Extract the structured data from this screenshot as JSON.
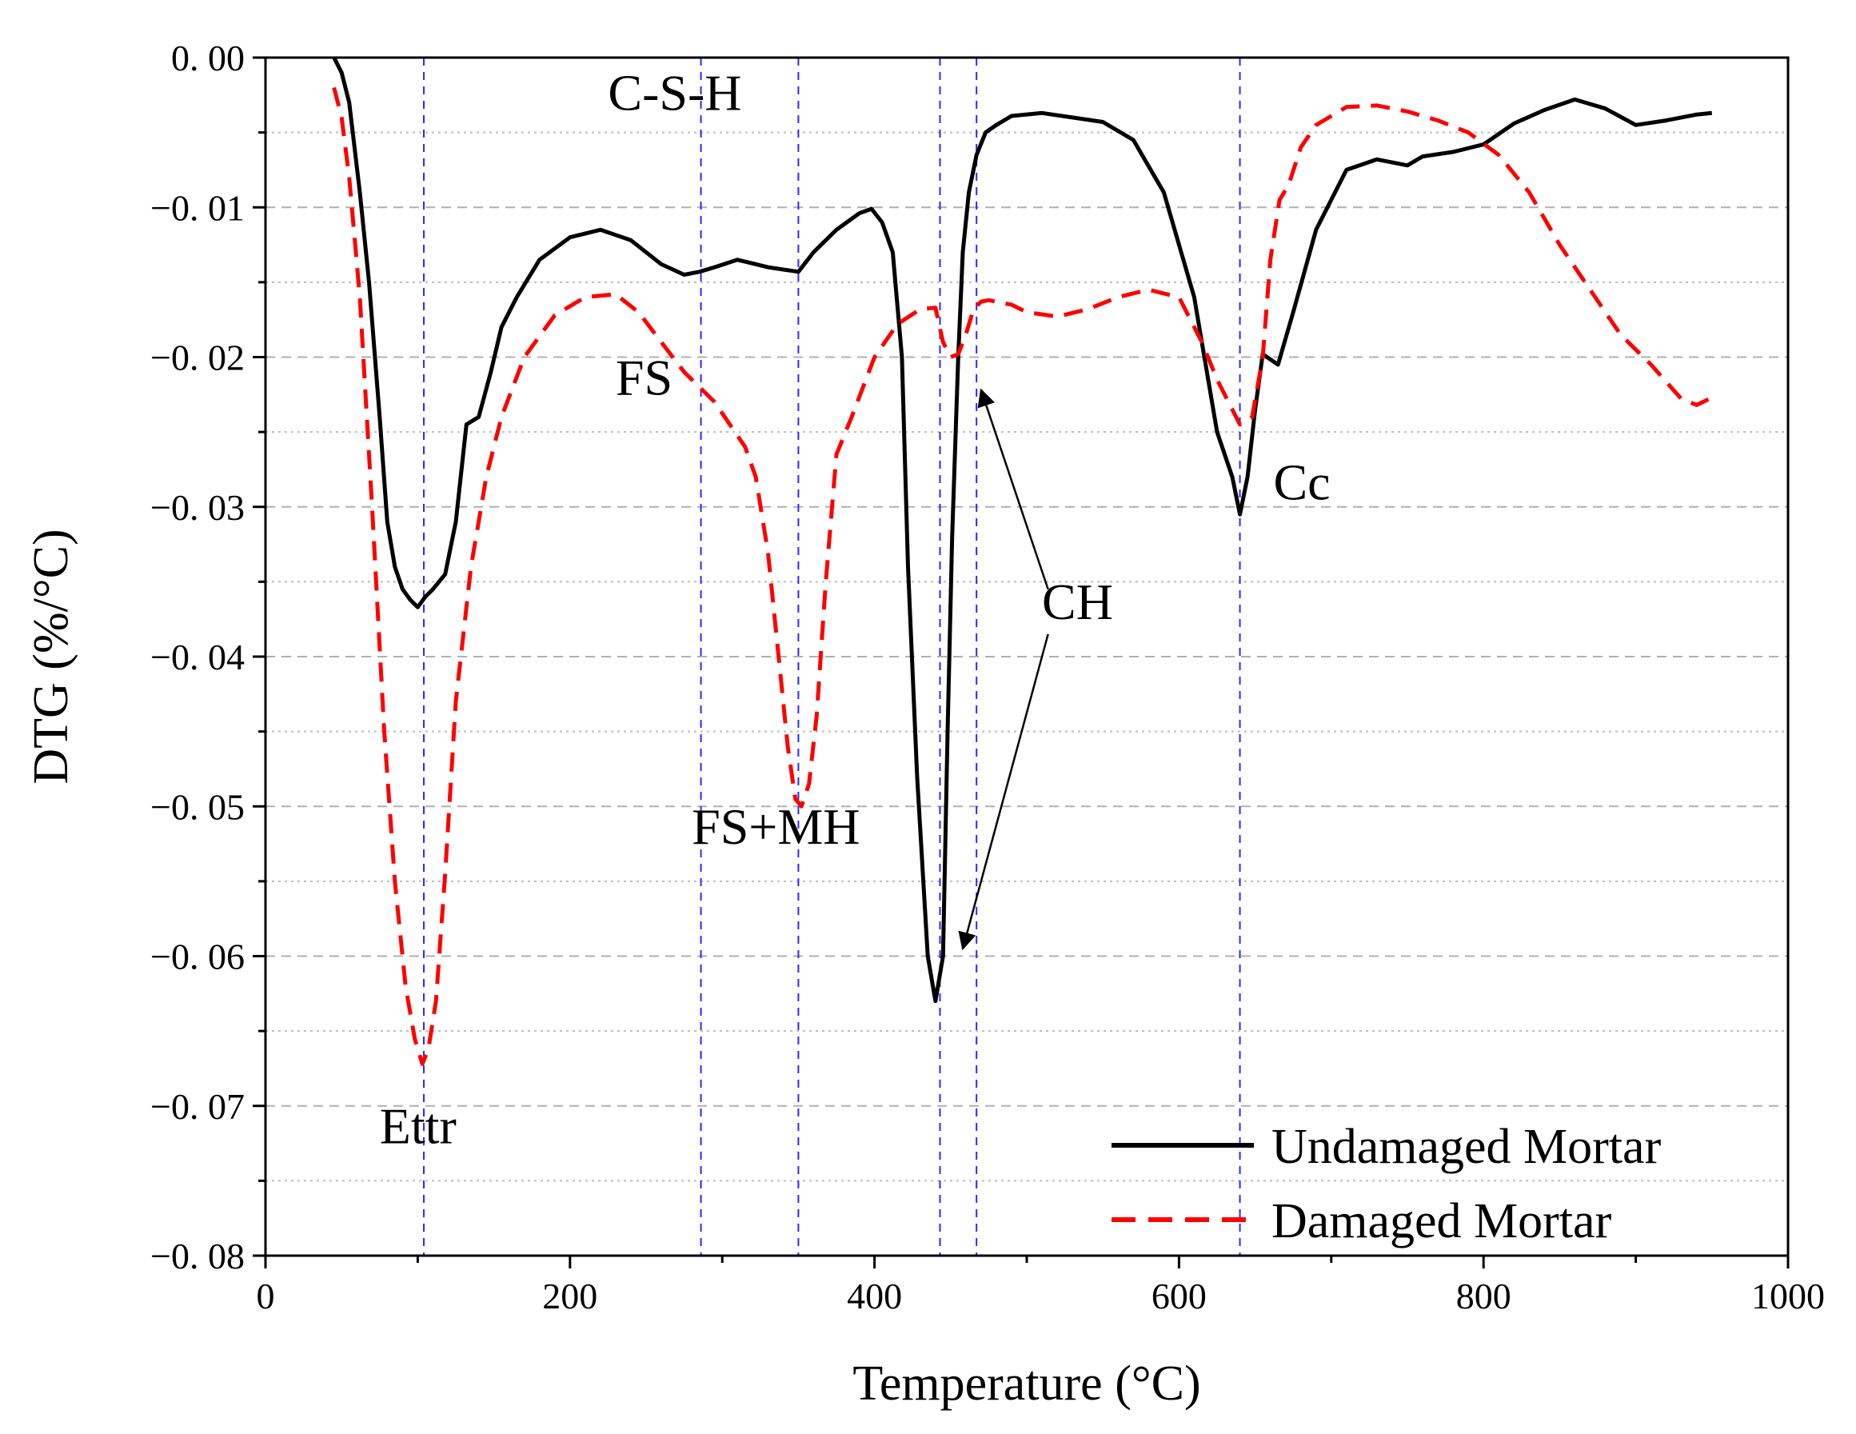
{
  "chart_data": {
    "type": "line",
    "title": "",
    "xlabel": "Temperature (°C)",
    "ylabel": "DTG (%/°C)",
    "xlim": [
      0,
      1000
    ],
    "ylim": [
      -0.08,
      0.0
    ],
    "x_ticks": [
      {
        "value": 0,
        "label": "0"
      },
      {
        "value": 200,
        "label": "200"
      },
      {
        "value": 400,
        "label": "400"
      },
      {
        "value": 600,
        "label": "600"
      },
      {
        "value": 800,
        "label": "800"
      },
      {
        "value": 1000,
        "label": "1000"
      }
    ],
    "y_ticks": [
      {
        "value": 0.0,
        "label": "0. 00"
      },
      {
        "value": -0.01,
        "label": "−0. 01"
      },
      {
        "value": -0.02,
        "label": "−0. 02"
      },
      {
        "value": -0.03,
        "label": "−0. 03"
      },
      {
        "value": -0.04,
        "label": "−0. 04"
      },
      {
        "value": -0.05,
        "label": "−0. 05"
      },
      {
        "value": -0.06,
        "label": "−0. 06"
      },
      {
        "value": -0.07,
        "label": "−0. 07"
      },
      {
        "value": -0.08,
        "label": "−0. 08"
      }
    ],
    "grid_major": [
      -0.01,
      -0.02,
      -0.03,
      -0.04,
      -0.05,
      -0.06,
      -0.07
    ],
    "grid_minor": [
      -0.005,
      -0.015,
      -0.025,
      -0.035,
      -0.045,
      -0.055,
      -0.065,
      -0.075
    ],
    "series": [
      {
        "name": "Undamaged Mortar",
        "color": "#000000",
        "style": "solid",
        "x": [
          45,
          50,
          55,
          62,
          68,
          75,
          80,
          85,
          90,
          95,
          100,
          105,
          110,
          118,
          125,
          132,
          140,
          148,
          155,
          165,
          180,
          200,
          220,
          240,
          260,
          275,
          285,
          295,
          310,
          330,
          350,
          360,
          375,
          390,
          398,
          405,
          412,
          418,
          422,
          428,
          435,
          440,
          445,
          448,
          451,
          455,
          458,
          462,
          467,
          473,
          480,
          490,
          510,
          530,
          550,
          570,
          590,
          610,
          625,
          635,
          640,
          645,
          650,
          655,
          665,
          675,
          690,
          710,
          730,
          750,
          760,
          780,
          800,
          820,
          840,
          860,
          880,
          900,
          920,
          940,
          950
        ],
        "values": [
          0.0,
          -0.001,
          -0.003,
          -0.009,
          -0.015,
          -0.024,
          -0.031,
          -0.034,
          -0.0355,
          -0.0362,
          -0.0367,
          -0.036,
          -0.0355,
          -0.0345,
          -0.031,
          -0.0245,
          -0.024,
          -0.021,
          -0.018,
          -0.016,
          -0.0135,
          -0.012,
          -0.0115,
          -0.0122,
          -0.0138,
          -0.0145,
          -0.0143,
          -0.014,
          -0.0135,
          -0.014,
          -0.0143,
          -0.013,
          -0.0115,
          -0.0104,
          -0.0101,
          -0.011,
          -0.013,
          -0.02,
          -0.034,
          -0.048,
          -0.06,
          -0.063,
          -0.06,
          -0.045,
          -0.032,
          -0.02,
          -0.013,
          -0.009,
          -0.0065,
          -0.005,
          -0.0045,
          -0.0039,
          -0.0037,
          -0.004,
          -0.0043,
          -0.0055,
          -0.009,
          -0.016,
          -0.025,
          -0.028,
          -0.0305,
          -0.028,
          -0.0235,
          -0.0198,
          -0.0205,
          -0.017,
          -0.0115,
          -0.0075,
          -0.0068,
          -0.0072,
          -0.0066,
          -0.0063,
          -0.0058,
          -0.0044,
          -0.0035,
          -0.0028,
          -0.0034,
          -0.0045,
          -0.0042,
          -0.0038,
          -0.0037
        ]
      },
      {
        "name": "Damaged Mortar",
        "color": "#ff0000",
        "style": "dashed",
        "x": [
          45,
          50,
          55,
          62,
          70,
          78,
          85,
          92,
          98,
          103,
          107,
          112,
          118,
          125,
          135,
          145,
          155,
          170,
          190,
          210,
          230,
          245,
          260,
          275,
          285,
          295,
          305,
          315,
          322,
          330,
          338,
          343,
          348,
          352,
          357,
          362,
          368,
          375,
          385,
          400,
          415,
          430,
          440,
          445,
          450,
          455,
          460,
          465,
          470,
          475,
          480,
          490,
          500,
          520,
          540,
          560,
          580,
          600,
          615,
          625,
          635,
          640,
          648,
          655,
          660,
          666,
          672,
          680,
          690,
          710,
          730,
          750,
          770,
          790,
          810,
          830,
          850,
          870,
          890,
          910,
          930,
          940,
          950
        ],
        "values": [
          -0.002,
          -0.004,
          -0.008,
          -0.016,
          -0.03,
          -0.045,
          -0.055,
          -0.062,
          -0.0655,
          -0.0672,
          -0.0662,
          -0.063,
          -0.0545,
          -0.043,
          -0.034,
          -0.028,
          -0.024,
          -0.02,
          -0.0172,
          -0.016,
          -0.0158,
          -0.017,
          -0.019,
          -0.021,
          -0.022,
          -0.023,
          -0.0245,
          -0.026,
          -0.028,
          -0.033,
          -0.041,
          -0.046,
          -0.0495,
          -0.05,
          -0.0485,
          -0.044,
          -0.035,
          -0.0265,
          -0.024,
          -0.02,
          -0.0178,
          -0.0168,
          -0.0167,
          -0.019,
          -0.02,
          -0.0198,
          -0.0185,
          -0.0168,
          -0.0163,
          -0.0162,
          -0.0163,
          -0.0165,
          -0.017,
          -0.0173,
          -0.0168,
          -0.016,
          -0.0155,
          -0.016,
          -0.019,
          -0.0215,
          -0.0235,
          -0.0245,
          -0.024,
          -0.02,
          -0.0135,
          -0.0095,
          -0.0085,
          -0.006,
          -0.0045,
          -0.0033,
          -0.0032,
          -0.0036,
          -0.0042,
          -0.005,
          -0.0065,
          -0.009,
          -0.0125,
          -0.0155,
          -0.0185,
          -0.0205,
          -0.0228,
          -0.0232,
          -0.0227
        ]
      }
    ],
    "vlines": [
      104,
      286,
      350,
      443,
      467,
      640
    ],
    "annotations": [
      {
        "text": "C-S-H",
        "x": 225,
        "y": -0.0035
      },
      {
        "text": "FS",
        "x": 230,
        "y": -0.0225
      },
      {
        "text": "FS+MH",
        "x": 280,
        "y": -0.0525
      },
      {
        "text": "Ettr",
        "x": 75,
        "y": -0.0725
      },
      {
        "text": "Cc",
        "x": 662,
        "y": -0.0295
      },
      {
        "text": "CH",
        "x": 510,
        "y": -0.0375
      }
    ],
    "arrows": [
      {
        "from": [
          514,
          -0.0355
        ],
        "to": [
          470,
          -0.0222
        ]
      },
      {
        "from": [
          514,
          -0.0385
        ],
        "to": [
          458,
          -0.0595
        ]
      }
    ],
    "legend_position": "bottom-right",
    "legend": [
      {
        "label": "Undamaged Mortar",
        "series": 0
      },
      {
        "label": "Damaged Mortar",
        "series": 1
      }
    ]
  }
}
